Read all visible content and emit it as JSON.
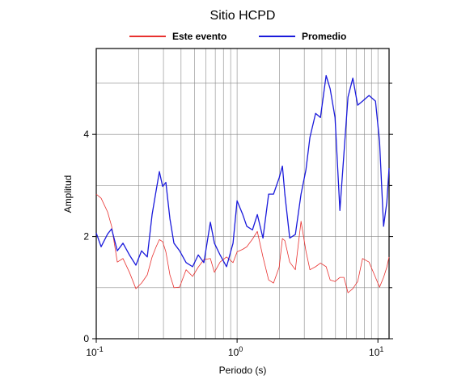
{
  "chart_data": {
    "type": "line",
    "title": "Sitio HCPD",
    "xlabel": "Periodo (s)",
    "ylabel": "Amplitud",
    "xscale": "log",
    "grid": true,
    "xlim": [
      0.1,
      12.0
    ],
    "ylim": [
      0,
      5.68
    ],
    "xticks": [
      {
        "value": 0.1,
        "label": "10^-1"
      },
      {
        "value": 1,
        "label": "10^0"
      },
      {
        "value": 10,
        "label": "10^1"
      }
    ],
    "xminor": [
      0.2,
      0.3,
      0.4,
      0.5,
      0.6,
      0.7,
      0.8,
      0.9,
      2,
      3,
      4,
      5,
      6,
      7,
      8,
      9
    ],
    "yticks": [
      0,
      2,
      4
    ],
    "yminor": [
      1,
      3,
      5
    ],
    "x": [
      0.1,
      0.1083,
      0.1204,
      0.1286,
      0.1411,
      0.1548,
      0.172,
      0.1912,
      0.2098,
      0.2302,
      0.2492,
      0.2662,
      0.2807,
      0.296,
      0.3121,
      0.3334,
      0.3561,
      0.3908,
      0.4345,
      0.483,
      0.5298,
      0.5812,
      0.6461,
      0.6902,
      0.7571,
      0.8418,
      0.936,
      1.0,
      1.097,
      1.172,
      1.286,
      1.392,
      1.527,
      1.675,
      1.814,
      1.99,
      2.098,
      2.183,
      2.364,
      2.593,
      2.845,
      3.08,
      3.29,
      3.61,
      3.908,
      4.288,
      4.581,
      4.961,
      5.37,
      5.736,
      6.131,
      6.634,
      7.184,
      7.778,
      8.647,
      9.612,
      10.27,
      10.97,
      11.57,
      12.0
    ],
    "series": [
      {
        "name": "Este evento",
        "color": "#e8312f",
        "width": 0.8,
        "values": [
          2.83,
          2.75,
          2.48,
          2.2,
          1.5,
          1.57,
          1.3,
          0.98,
          1.09,
          1.25,
          1.6,
          1.8,
          1.94,
          1.9,
          1.7,
          1.25,
          1.0,
          1.01,
          1.35,
          1.22,
          1.4,
          1.55,
          1.57,
          1.3,
          1.5,
          1.6,
          1.49,
          1.7,
          1.75,
          1.8,
          1.95,
          2.1,
          1.6,
          1.15,
          1.09,
          1.4,
          1.96,
          1.92,
          1.5,
          1.35,
          2.3,
          1.72,
          1.35,
          1.41,
          1.48,
          1.41,
          1.15,
          1.12,
          1.2,
          1.2,
          0.9,
          0.98,
          1.12,
          1.57,
          1.5,
          1.2,
          1.01,
          1.2,
          1.4,
          1.6
        ]
      },
      {
        "name": "Promedio",
        "color": "#1a1adb",
        "width": 1.3,
        "values": [
          2.07,
          1.8,
          2.05,
          2.15,
          1.72,
          1.87,
          1.64,
          1.44,
          1.72,
          1.6,
          2.43,
          2.9,
          3.27,
          2.98,
          3.06,
          2.35,
          1.87,
          1.72,
          1.49,
          1.41,
          1.64,
          1.49,
          2.28,
          1.87,
          1.64,
          1.41,
          1.87,
          2.7,
          2.43,
          2.2,
          2.13,
          2.43,
          1.97,
          2.83,
          2.83,
          3.15,
          3.38,
          2.83,
          1.97,
          2.04,
          2.83,
          3.3,
          3.94,
          4.41,
          4.33,
          5.15,
          4.89,
          4.33,
          2.51,
          3.62,
          4.73,
          5.1,
          4.57,
          4.65,
          4.76,
          4.65,
          3.86,
          2.2,
          2.67,
          3.34
        ]
      }
    ]
  }
}
